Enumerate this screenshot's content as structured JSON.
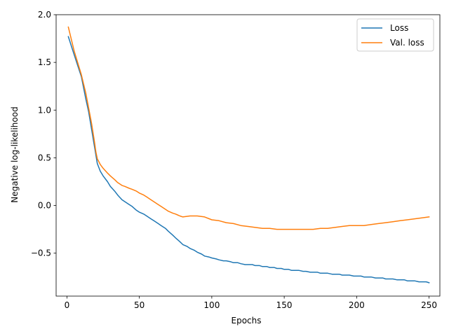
{
  "chart_data": {
    "type": "line",
    "xlabel": "Epochs",
    "ylabel": "Negative log-likelihood",
    "xlim": [
      -7.45,
      257.45
    ],
    "ylim": [
      -0.95,
      2.0
    ],
    "xticks": [
      0,
      50,
      100,
      150,
      200,
      250
    ],
    "yticks": [
      -0.5,
      0.0,
      0.5,
      1.0,
      1.5,
      2.0
    ],
    "xtick_labels": [
      "0",
      "50",
      "100",
      "150",
      "200",
      "250"
    ],
    "ytick_labels": [
      "−0.5",
      "0.0",
      "0.5",
      "1.0",
      "1.5",
      "2.0"
    ],
    "grid": false,
    "legend": {
      "placement": "top-right"
    },
    "series": [
      {
        "name": "Loss",
        "color": "#1f77b4",
        "x": [
          1,
          5,
          10,
          13,
          15,
          17,
          19,
          21,
          23,
          25,
          28,
          30,
          33,
          35,
          38,
          40,
          43,
          45,
          48,
          50,
          53,
          55,
          58,
          60,
          63,
          65,
          68,
          70,
          73,
          75,
          78,
          80,
          83,
          85,
          88,
          90,
          93,
          95,
          98,
          100,
          103,
          105,
          108,
          110,
          113,
          115,
          118,
          120,
          123,
          125,
          128,
          130,
          133,
          135,
          138,
          140,
          143,
          145,
          148,
          150,
          153,
          155,
          158,
          160,
          163,
          165,
          168,
          170,
          173,
          175,
          178,
          180,
          183,
          185,
          188,
          190,
          193,
          195,
          198,
          200,
          203,
          205,
          208,
          210,
          213,
          215,
          218,
          220,
          223,
          225,
          228,
          230,
          233,
          235,
          238,
          240,
          243,
          245,
          248,
          250
        ],
        "y": [
          1.77,
          1.58,
          1.35,
          1.12,
          0.98,
          0.8,
          0.62,
          0.44,
          0.36,
          0.31,
          0.25,
          0.2,
          0.15,
          0.11,
          0.06,
          0.04,
          0.01,
          -0.01,
          -0.05,
          -0.07,
          -0.09,
          -0.11,
          -0.14,
          -0.16,
          -0.19,
          -0.21,
          -0.24,
          -0.27,
          -0.31,
          -0.34,
          -0.38,
          -0.41,
          -0.43,
          -0.45,
          -0.47,
          -0.49,
          -0.51,
          -0.53,
          -0.54,
          -0.55,
          -0.56,
          -0.57,
          -0.58,
          -0.58,
          -0.59,
          -0.6,
          -0.6,
          -0.61,
          -0.62,
          -0.62,
          -0.62,
          -0.63,
          -0.63,
          -0.64,
          -0.64,
          -0.65,
          -0.65,
          -0.66,
          -0.66,
          -0.67,
          -0.67,
          -0.68,
          -0.68,
          -0.68,
          -0.69,
          -0.69,
          -0.7,
          -0.7,
          -0.7,
          -0.71,
          -0.71,
          -0.71,
          -0.72,
          -0.72,
          -0.72,
          -0.73,
          -0.73,
          -0.73,
          -0.74,
          -0.74,
          -0.74,
          -0.75,
          -0.75,
          -0.75,
          -0.76,
          -0.76,
          -0.76,
          -0.77,
          -0.77,
          -0.77,
          -0.78,
          -0.78,
          -0.78,
          -0.79,
          -0.79,
          -0.79,
          -0.8,
          -0.8,
          -0.8,
          -0.81
        ]
      },
      {
        "name": "Val. loss",
        "color": "#ff7f0e",
        "x": [
          1,
          5,
          10,
          13,
          15,
          17,
          19,
          20,
          21,
          23,
          25,
          28,
          30,
          33,
          35,
          38,
          40,
          43,
          45,
          48,
          50,
          53,
          55,
          58,
          60,
          63,
          65,
          68,
          70,
          73,
          75,
          78,
          80,
          85,
          90,
          95,
          100,
          105,
          110,
          115,
          120,
          125,
          130,
          135,
          140,
          145,
          150,
          155,
          160,
          165,
          170,
          175,
          180,
          185,
          190,
          195,
          200,
          205,
          210,
          215,
          220,
          225,
          230,
          235,
          240,
          245,
          250
        ],
        "y": [
          1.87,
          1.62,
          1.37,
          1.18,
          1.02,
          0.86,
          0.67,
          0.56,
          0.49,
          0.43,
          0.39,
          0.34,
          0.31,
          0.27,
          0.24,
          0.21,
          0.2,
          0.18,
          0.17,
          0.15,
          0.13,
          0.11,
          0.09,
          0.06,
          0.04,
          0.01,
          -0.01,
          -0.04,
          -0.06,
          -0.08,
          -0.09,
          -0.11,
          -0.12,
          -0.11,
          -0.11,
          -0.12,
          -0.15,
          -0.16,
          -0.18,
          -0.19,
          -0.21,
          -0.22,
          -0.23,
          -0.24,
          -0.24,
          -0.25,
          -0.25,
          -0.25,
          -0.25,
          -0.25,
          -0.25,
          -0.24,
          -0.24,
          -0.23,
          -0.22,
          -0.21,
          -0.21,
          -0.21,
          -0.2,
          -0.19,
          -0.18,
          -0.17,
          -0.16,
          -0.15,
          -0.14,
          -0.13,
          -0.12
        ]
      }
    ]
  }
}
